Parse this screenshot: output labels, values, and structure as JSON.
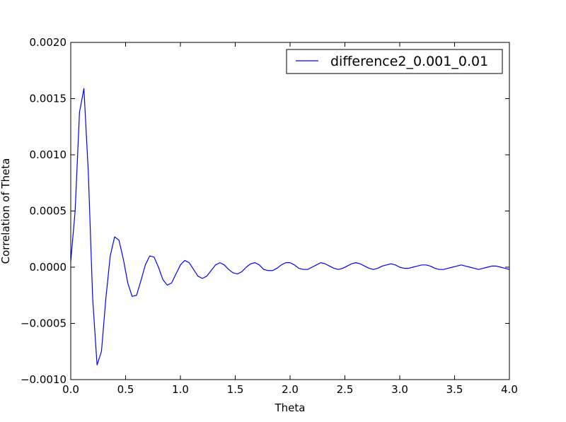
{
  "chart_data": {
    "type": "line",
    "title": "",
    "xlabel": "Theta",
    "ylabel": "Correlation of Theta",
    "xlim": [
      0.0,
      4.0
    ],
    "ylim": [
      -0.001,
      0.002
    ],
    "x_ticks": [
      "0.0",
      "0.5",
      "1.0",
      "1.5",
      "2.0",
      "2.5",
      "3.0",
      "3.5",
      "4.0"
    ],
    "x_tick_values": [
      0.0,
      0.5,
      1.0,
      1.5,
      2.0,
      2.5,
      3.0,
      3.5,
      4.0
    ],
    "y_ticks": [
      "−0.0010",
      "−0.0005",
      "0.0000",
      "0.0005",
      "0.0010",
      "0.0015",
      "0.0020"
    ],
    "y_tick_values": [
      -0.001,
      -0.0005,
      0.0,
      0.0005,
      0.001,
      0.0015,
      0.002
    ],
    "grid": false,
    "legend_position": "top-right",
    "series": [
      {
        "name": "difference2_0.001_0.01",
        "color": "#0000ff",
        "x": [
          0.0,
          0.04,
          0.08,
          0.12,
          0.16,
          0.2,
          0.24,
          0.28,
          0.32,
          0.36,
          0.4,
          0.44,
          0.48,
          0.52,
          0.56,
          0.6,
          0.64,
          0.68,
          0.72,
          0.76,
          0.8,
          0.84,
          0.88,
          0.92,
          0.96,
          1.0,
          1.04,
          1.08,
          1.12,
          1.16,
          1.2,
          1.24,
          1.28,
          1.32,
          1.36,
          1.4,
          1.44,
          1.48,
          1.52,
          1.56,
          1.6,
          1.64,
          1.68,
          1.72,
          1.76,
          1.8,
          1.84,
          1.88,
          1.92,
          1.96,
          2.0,
          2.04,
          2.08,
          2.12,
          2.16,
          2.2,
          2.24,
          2.28,
          2.32,
          2.36,
          2.4,
          2.44,
          2.48,
          2.52,
          2.56,
          2.6,
          2.64,
          2.68,
          2.72,
          2.76,
          2.8,
          2.84,
          2.88,
          2.92,
          2.96,
          3.0,
          3.04,
          3.08,
          3.12,
          3.16,
          3.2,
          3.24,
          3.28,
          3.32,
          3.36,
          3.4,
          3.44,
          3.48,
          3.52,
          3.56,
          3.6,
          3.64,
          3.68,
          3.72,
          3.76,
          3.8,
          3.84,
          3.88,
          3.92,
          3.96,
          4.0
        ],
        "y": [
          5e-05,
          0.0005,
          0.00138,
          0.00159,
          0.00085,
          -0.00028,
          -0.00087,
          -0.00075,
          -0.00028,
          0.0001,
          0.00027,
          0.00024,
          7e-05,
          -0.00014,
          -0.00026,
          -0.00025,
          -0.00012,
          2e-05,
          0.0001,
          9e-05,
          0.0,
          -0.00011,
          -0.00016,
          -0.00014,
          -6e-05,
          2e-05,
          6e-05,
          4e-05,
          -2e-05,
          -8e-05,
          -0.0001,
          -8e-05,
          -3e-05,
          2e-05,
          4e-05,
          2e-05,
          -2e-05,
          -5e-05,
          -6e-05,
          -4e-05,
          0.0,
          3e-05,
          4e-05,
          2e-05,
          -2e-05,
          -3e-05,
          -3e-05,
          -1e-05,
          2e-05,
          4e-05,
          4e-05,
          2e-05,
          -1e-05,
          -2e-05,
          -2e-05,
          0.0,
          2e-05,
          4e-05,
          3e-05,
          1e-05,
          -1e-05,
          -2e-05,
          -1e-05,
          1e-05,
          3e-05,
          4e-05,
          3e-05,
          1e-05,
          -1e-05,
          -2e-05,
          -1e-05,
          1e-05,
          2e-05,
          3e-05,
          2e-05,
          0.0,
          -1e-05,
          -1e-05,
          0.0,
          1e-05,
          2e-05,
          2e-05,
          1e-05,
          -1e-05,
          -2e-05,
          -2e-05,
          -1e-05,
          0.0,
          1e-05,
          2e-05,
          1e-05,
          0.0,
          -1e-05,
          -2e-05,
          -1e-05,
          0.0,
          1e-05,
          1e-05,
          0.0,
          -1e-05,
          -2e-05
        ]
      }
    ]
  }
}
